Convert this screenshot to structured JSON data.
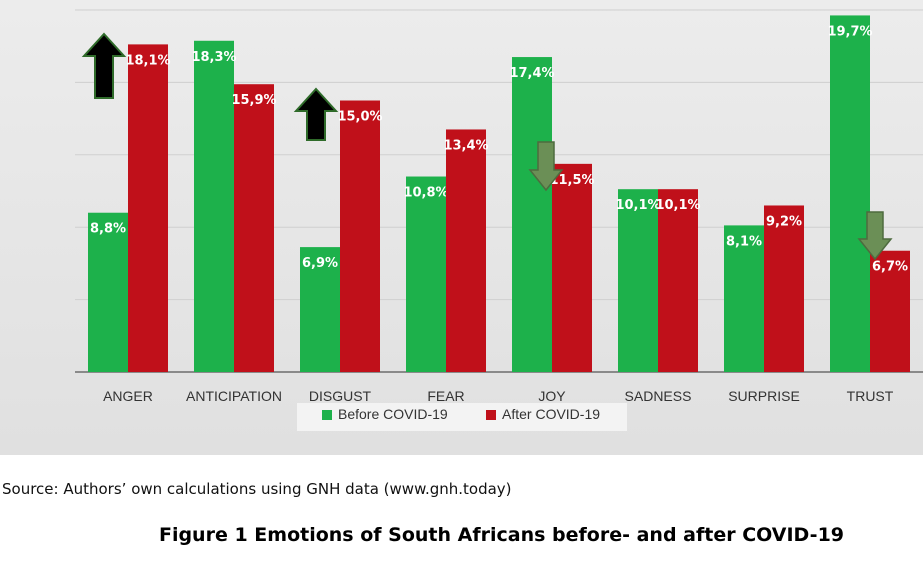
{
  "chart_data": {
    "type": "bar",
    "categories": [
      "ANGER",
      "ANTICIPATION",
      "DISGUST",
      "FEAR",
      "JOY",
      "SADNESS",
      "SURPRISE",
      "TRUST"
    ],
    "series": [
      {
        "name": "Before COVID-19",
        "color": "#1db14b",
        "values": [
          8.8,
          18.3,
          6.9,
          10.8,
          17.4,
          10.1,
          8.1,
          19.7
        ],
        "labels": [
          "8,8%",
          "18,3%",
          "6,9%",
          "10,8%",
          "17,4%",
          "10,1%",
          "8,1%",
          "19,7%"
        ]
      },
      {
        "name": "After COVID-19",
        "color": "#c0101a",
        "values": [
          18.1,
          15.9,
          15.0,
          13.4,
          11.5,
          10.1,
          9.2,
          6.7
        ],
        "labels": [
          "18,1%",
          "15,9%",
          "15,0%",
          "13,4%",
          "11,5%",
          "10,1%",
          "9,2%",
          "6,7%"
        ]
      }
    ],
    "ylim": [
      0,
      20
    ],
    "grid": true,
    "legend": "bottom-center",
    "annotations": [
      {
        "category": "ANGER",
        "direction": "up",
        "color": "#000000"
      },
      {
        "category": "DISGUST",
        "direction": "up",
        "color": "#000000"
      },
      {
        "category": "JOY",
        "direction": "down",
        "color": "#6b8f56"
      },
      {
        "category": "TRUST",
        "direction": "down",
        "color": "#6b8f56"
      }
    ]
  },
  "source_text": "Source: Authors’ own calculations using GNH data (www.gnh.today)",
  "caption": "Figure 1 Emotions of South Africans before- and after COVID-19"
}
